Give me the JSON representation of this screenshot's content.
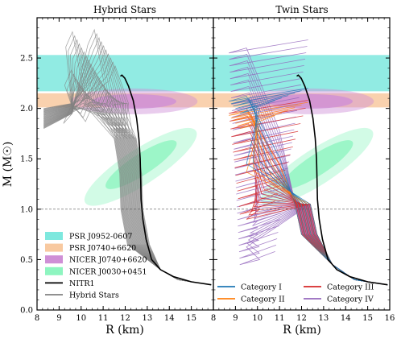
{
  "chart_data": [
    {
      "type": "line",
      "title": "Hybrid Stars",
      "xlabel": "R (km)",
      "ylabel": "M (M☉)",
      "xlim": [
        8,
        16
      ],
      "ylim": [
        0.0,
        2.9
      ],
      "x_ticks": [
        "8",
        "9",
        "10",
        "11",
        "12",
        "13",
        "14",
        "15"
      ],
      "y_ticks": [
        "0.0",
        "0.5",
        "1.0",
        "1.5",
        "2.0",
        "2.5"
      ],
      "reference_line_y": 1.0,
      "bands": [
        {
          "name": "PSR J0952-0607",
          "y_range": [
            2.17,
            2.53
          ],
          "color": "#7ee8de"
        },
        {
          "name": "PSR J0740+6620",
          "y_range": [
            2.01,
            2.15
          ],
          "color": "#f8c9a0"
        }
      ],
      "contours": [
        {
          "name": "NICER J0740+6620",
          "center": [
            12.4,
            2.07
          ],
          "color": "#cf8fd6"
        },
        {
          "name": "NICER J0030+0451",
          "center": [
            12.7,
            1.42
          ],
          "color": "#8ef5c0"
        }
      ],
      "series": [
        {
          "name": "NITR1",
          "color": "#000000",
          "x": [
            15.9,
            15.0,
            14.2,
            13.6,
            13.2,
            12.95,
            12.8,
            12.72,
            12.7,
            12.68,
            12.62,
            12.52,
            12.36,
            12.15,
            11.98,
            11.85,
            11.78
          ],
          "y": [
            0.25,
            0.28,
            0.33,
            0.4,
            0.5,
            0.7,
            0.9,
            1.1,
            1.3,
            1.5,
            1.7,
            1.9,
            2.08,
            2.22,
            2.3,
            2.33,
            2.32
          ]
        },
        {
          "name": "Hybrid Stars",
          "color": "#808080",
          "samples": 40,
          "x_tail": 15.9,
          "x_core_range": [
            11.8,
            12.8
          ],
          "x_peak_range": [
            9.5,
            11.6
          ],
          "y_peak_range": [
            2.0,
            2.8
          ]
        }
      ],
      "legend": {
        "position": "lower-left",
        "entries": [
          "PSR J0952-0607",
          "PSR J0740+6620",
          "NICER J0740+6620",
          "NICER J0030+0451",
          "NITR1",
          "Hybrid Stars"
        ]
      }
    },
    {
      "type": "line",
      "title": "Twin Stars",
      "xlabel": "R (km)",
      "xlim": [
        8,
        16
      ],
      "ylim": [
        0.0,
        2.9
      ],
      "x_ticks": [
        "8",
        "9",
        "10",
        "11",
        "12",
        "13",
        "14",
        "15",
        "16"
      ],
      "reference_line_y": 1.0,
      "series": [
        {
          "name": "NITR1",
          "color": "#000000"
        },
        {
          "name": "Category I",
          "color": "#1f77b4",
          "samples": 6,
          "y_range": [
            2.0,
            2.12
          ]
        },
        {
          "name": "Category II",
          "color": "#ff7f0e",
          "samples": 6,
          "y_range": [
            1.85,
            1.98
          ]
        },
        {
          "name": "Category III",
          "color": "#d62728",
          "samples": 14,
          "y_range": [
            1.0,
            2.0
          ]
        },
        {
          "name": "Category IV",
          "color": "#9467bd",
          "samples": 34,
          "y_range": [
            0.5,
            2.6
          ]
        }
      ],
      "legend": {
        "position": "lower-center",
        "entries": [
          "Category I",
          "Category III",
          "Category II",
          "Category IV"
        ]
      }
    }
  ]
}
